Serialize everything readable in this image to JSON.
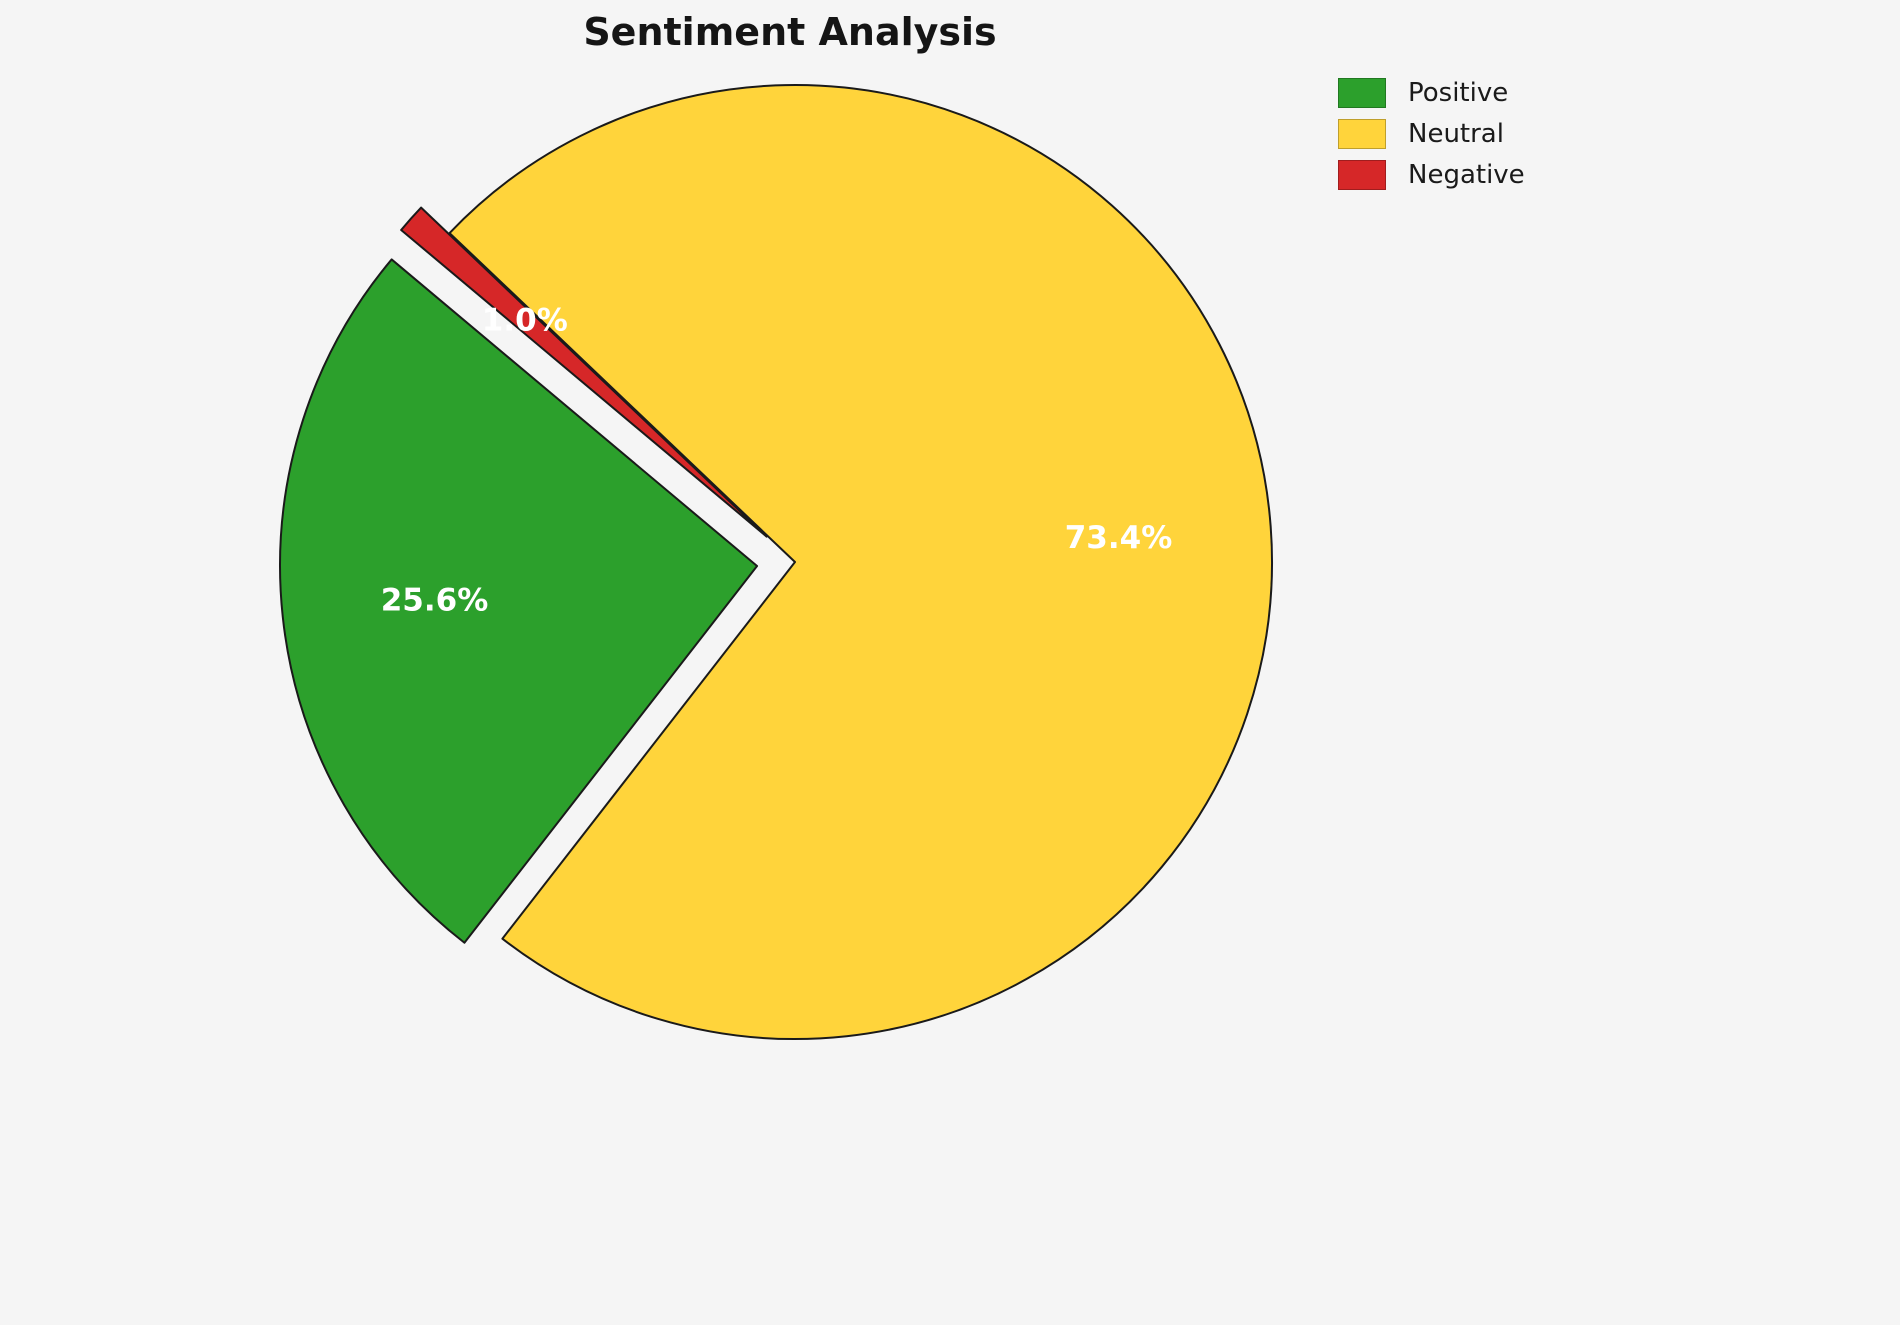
{
  "chart_data": {
    "type": "pie",
    "title": "Sentiment Analysis",
    "labels": [
      "Positive",
      "Neutral",
      "Negative"
    ],
    "values": [
      25.6,
      73.4,
      1.0
    ],
    "display_labels": [
      "25.6%",
      "73.4%",
      "1.0%"
    ],
    "colors": [
      "#2CA02C",
      "#FFD43B",
      "#D62728"
    ],
    "edge_color": "#1a1a1a",
    "explode": [
      0.08,
      0,
      0.08
    ],
    "start_angle": 140,
    "counterclockwise": true,
    "label_radius": 0.68,
    "legend_position": "upper right"
  }
}
